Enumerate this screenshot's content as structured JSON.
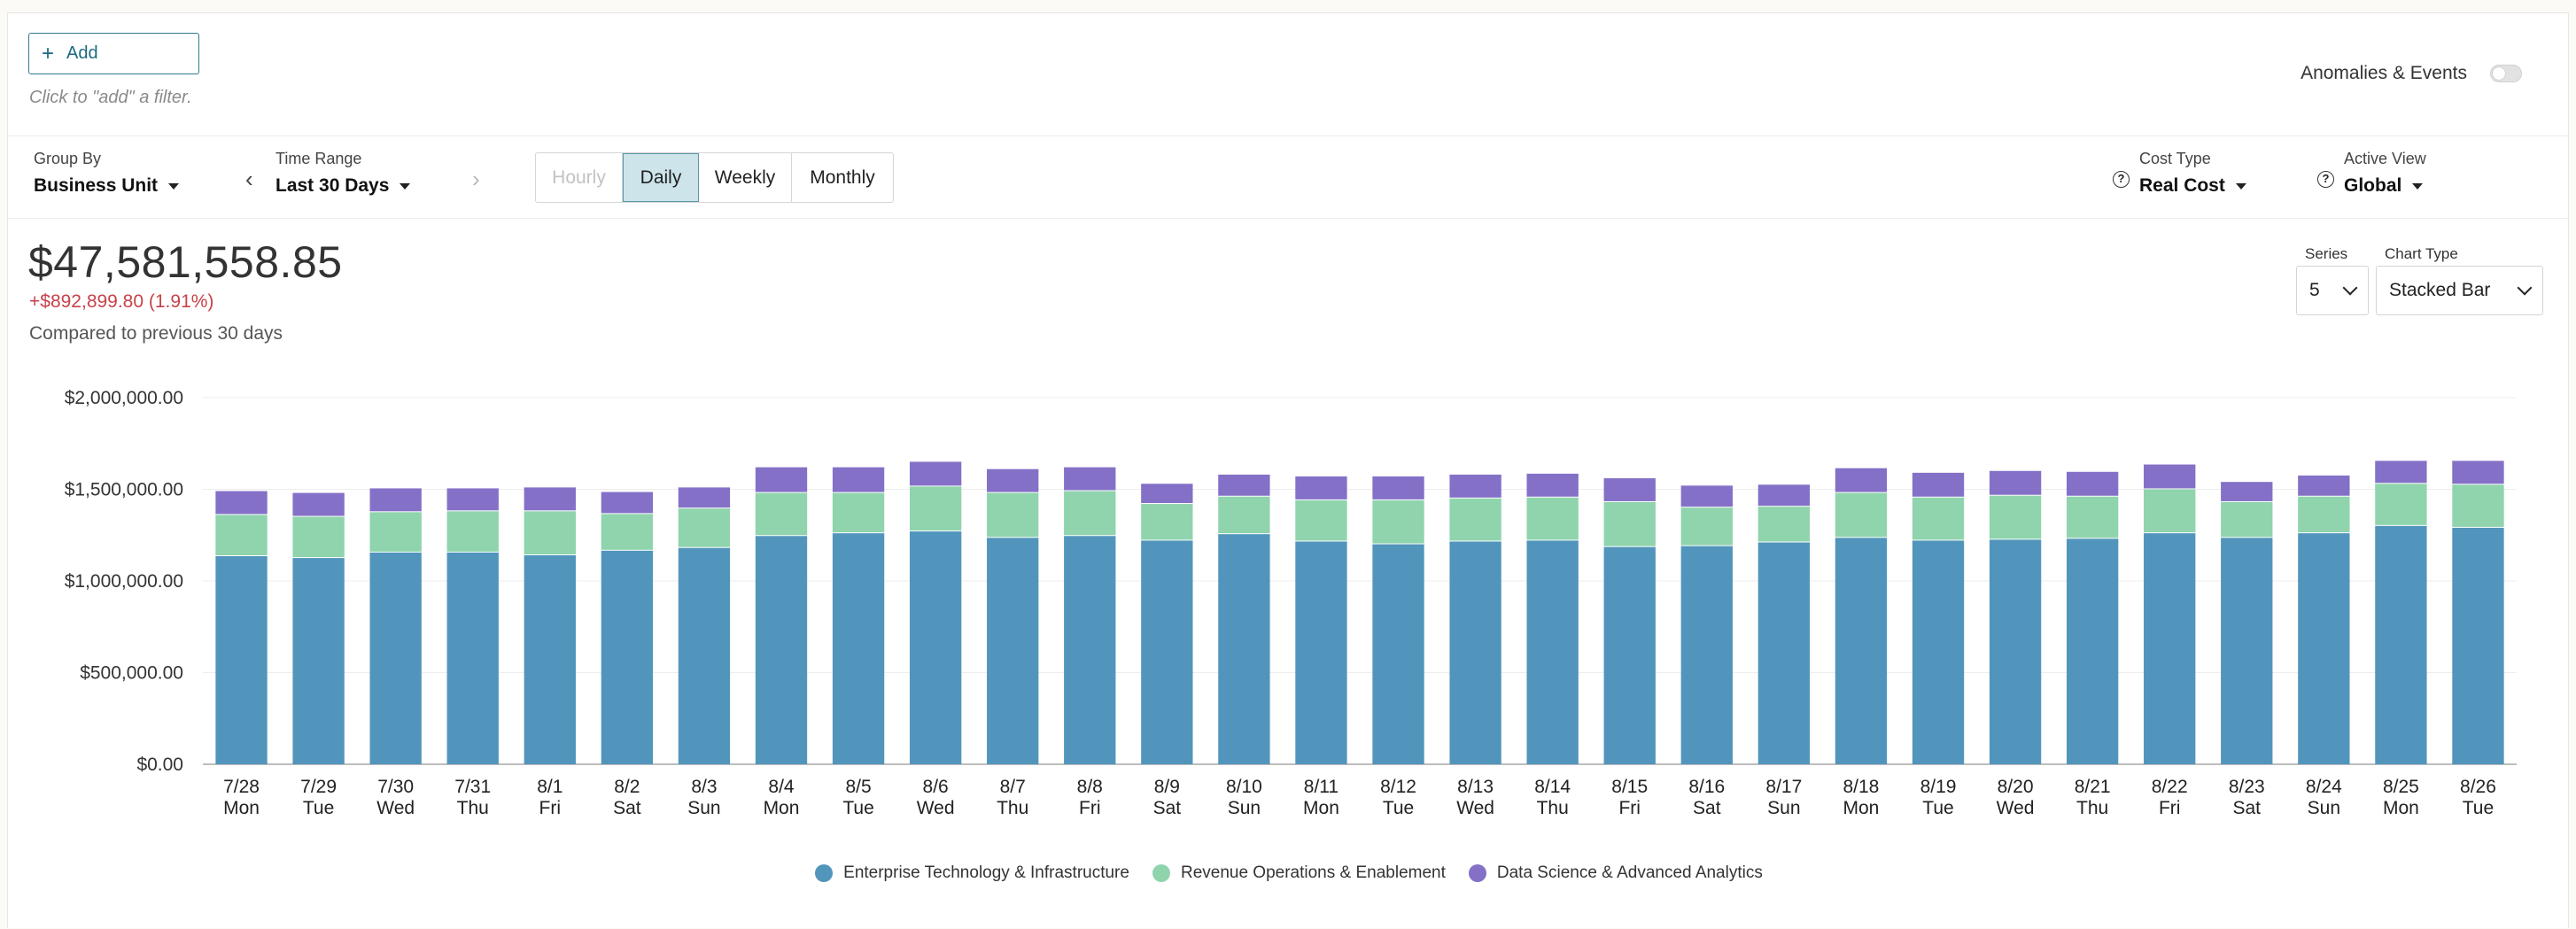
{
  "filter": {
    "add_label": "Add",
    "hint": "Click to \"add\" a filter."
  },
  "anomalies": {
    "label": "Anomalies & Events",
    "enabled": false
  },
  "controls": {
    "group_by": {
      "label": "Group By",
      "value": "Business Unit"
    },
    "time_range": {
      "label": "Time Range",
      "value": "Last 30 Days"
    },
    "granularity": {
      "hourly": "Hourly",
      "daily": "Daily",
      "weekly": "Weekly",
      "monthly": "Monthly",
      "selected": "Daily"
    },
    "cost_type": {
      "label": "Cost Type",
      "value": "Real Cost"
    },
    "active_view": {
      "label": "Active View",
      "value": "Global"
    }
  },
  "summary": {
    "total": "$47,581,558.85",
    "delta": "+$892,899.80 (1.91%)",
    "compared": "Compared to previous 30 days"
  },
  "series_select": {
    "label": "Series",
    "value": "5"
  },
  "chart_type_select": {
    "label": "Chart Type",
    "value": "Stacked Bar"
  },
  "chart_data": {
    "type": "bar",
    "stacked": true,
    "title": "",
    "xlabel": "",
    "ylabel": "",
    "ylim": [
      0,
      2000000
    ],
    "yticks": [
      "$0.00",
      "$500,000.00",
      "$1,000,000.00",
      "$1,500,000.00",
      "$2,000,000.00"
    ],
    "ytick_values": [
      0,
      500000,
      1000000,
      1500000,
      2000000
    ],
    "grid": true,
    "legend_position": "bottom",
    "categories": [
      "7/28",
      "7/29",
      "7/30",
      "7/31",
      "8/1",
      "8/2",
      "8/3",
      "8/4",
      "8/5",
      "8/6",
      "8/7",
      "8/8",
      "8/9",
      "8/10",
      "8/11",
      "8/12",
      "8/13",
      "8/14",
      "8/15",
      "8/16",
      "8/17",
      "8/18",
      "8/19",
      "8/20",
      "8/21",
      "8/22",
      "8/23",
      "8/24",
      "8/25",
      "8/26"
    ],
    "weekdays": [
      "Mon",
      "Tue",
      "Wed",
      "Thu",
      "Fri",
      "Sat",
      "Sun",
      "Mon",
      "Tue",
      "Wed",
      "Thu",
      "Fri",
      "Sat",
      "Sun",
      "Mon",
      "Tue",
      "Wed",
      "Thu",
      "Fri",
      "Sat",
      "Sun",
      "Mon",
      "Tue",
      "Wed",
      "Thu",
      "Fri",
      "Sat",
      "Sun",
      "Mon",
      "Tue"
    ],
    "series": [
      {
        "name": "Enterprise Technology & Infrastructure",
        "color": "#5295bc",
        "values": [
          1140000,
          1130000,
          1160000,
          1160000,
          1145000,
          1170000,
          1185000,
          1250000,
          1265000,
          1275000,
          1240000,
          1250000,
          1225000,
          1260000,
          1220000,
          1205000,
          1220000,
          1225000,
          1190000,
          1195000,
          1215000,
          1240000,
          1225000,
          1230000,
          1235000,
          1265000,
          1240000,
          1265000,
          1305000,
          1295000
        ]
      },
      {
        "name": "Revenue Operations & Enablement",
        "color": "#8fd4ad",
        "values": [
          225000,
          225000,
          220000,
          225000,
          240000,
          200000,
          215000,
          235000,
          220000,
          245000,
          245000,
          245000,
          200000,
          205000,
          225000,
          240000,
          235000,
          235000,
          245000,
          210000,
          195000,
          245000,
          235000,
          240000,
          230000,
          240000,
          195000,
          200000,
          230000,
          235000
        ]
      },
      {
        "name": "Data Science & Advanced Analytics",
        "color": "#8470c7",
        "values": [
          130000,
          130000,
          130000,
          125000,
          130000,
          120000,
          115000,
          140000,
          140000,
          135000,
          130000,
          130000,
          110000,
          120000,
          130000,
          130000,
          130000,
          130000,
          130000,
          120000,
          120000,
          135000,
          135000,
          135000,
          135000,
          135000,
          110000,
          115000,
          125000,
          130000
        ]
      }
    ]
  }
}
